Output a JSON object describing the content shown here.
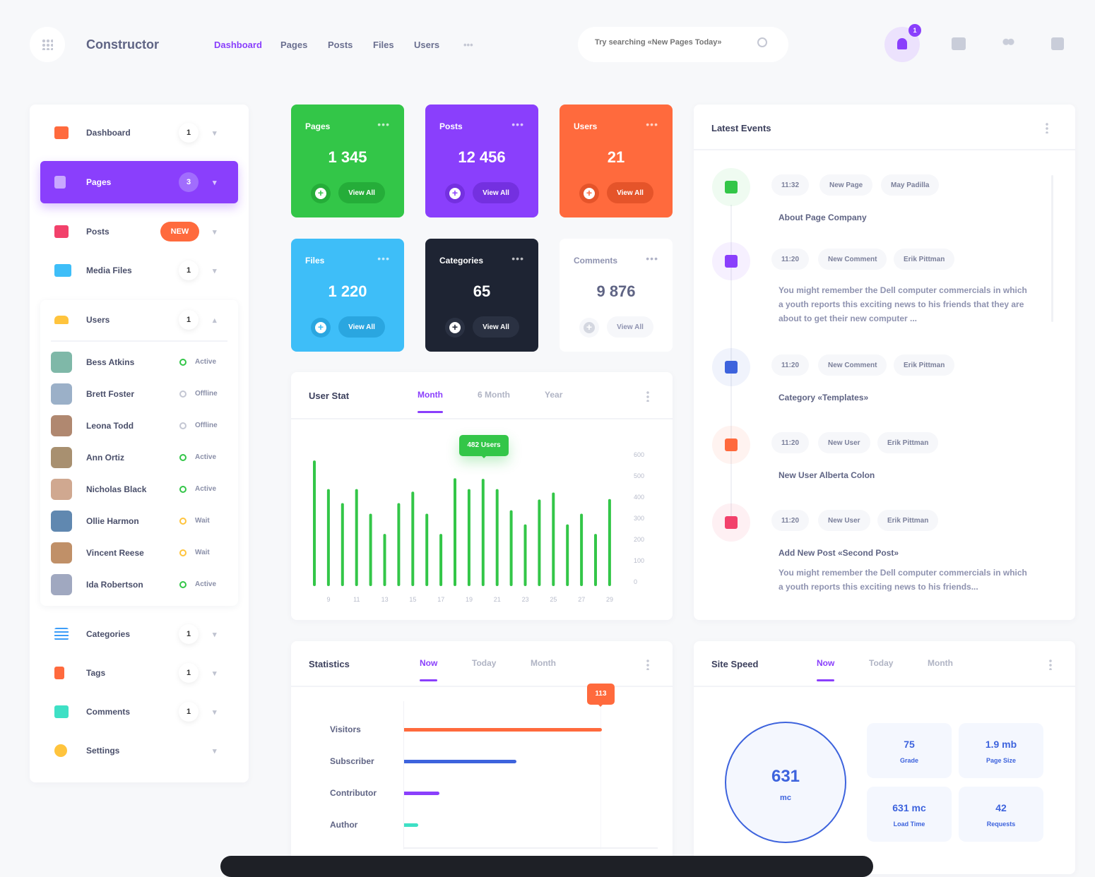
{
  "header": {
    "app_name": "Constructor",
    "nav": [
      "Dashboard",
      "Pages",
      "Posts",
      "Files",
      "Users"
    ],
    "more": "•••",
    "search_placeholder": "Try searching «New Pages Today»",
    "notification_count": "1"
  },
  "sidebar": {
    "items": [
      {
        "label": "Dashboard",
        "count": "1",
        "icon": "dashboard-icon"
      },
      {
        "label": "Pages",
        "count": "3",
        "icon": "page-icon"
      },
      {
        "label": "Posts",
        "badge": "NEW",
        "icon": "post-icon"
      },
      {
        "label": "Media Files",
        "count": "1",
        "icon": "image-icon"
      },
      {
        "label": "Users",
        "count": "1",
        "icon": "users-icon"
      },
      {
        "label": "Categories",
        "count": "1",
        "icon": "list-icon"
      },
      {
        "label": "Tags",
        "count": "1",
        "icon": "bookmark-icon"
      },
      {
        "label": "Comments",
        "count": "1",
        "icon": "comment-icon"
      },
      {
        "label": "Settings",
        "icon": "gear-icon"
      }
    ],
    "users": [
      {
        "name": "Bess Atkins",
        "status": "Active"
      },
      {
        "name": "Brett Foster",
        "status": "Offline"
      },
      {
        "name": "Leona Todd",
        "status": "Offline"
      },
      {
        "name": "Ann Ortiz",
        "status": "Active"
      },
      {
        "name": "Nicholas Black",
        "status": "Active"
      },
      {
        "name": "Ollie Harmon",
        "status": "Wait"
      },
      {
        "name": "Vincent Reese",
        "status": "Wait"
      },
      {
        "name": "Ida Robertson",
        "status": "Active"
      }
    ]
  },
  "tiles": [
    {
      "title": "Pages",
      "value": "1 345",
      "action": "View All",
      "color": "#33c648"
    },
    {
      "title": "Posts",
      "value": "12 456",
      "action": "View All",
      "color": "#8a3ffc"
    },
    {
      "title": "Users",
      "value": "21",
      "action": "View All",
      "color": "#ff6a3d"
    },
    {
      "title": "Files",
      "value": "1 220",
      "action": "View All",
      "color": "#3ebef8"
    },
    {
      "title": "Categories",
      "value": "65",
      "action": "View All",
      "color": "#1e2433"
    },
    {
      "title": "Comments",
      "value": "9 876",
      "action": "View All",
      "color": "#ffffff"
    }
  ],
  "user_stat": {
    "title": "User Stat",
    "tabs": [
      "Month",
      "6 Month",
      "Year"
    ],
    "tooltip": "482 Users"
  },
  "chart_data": {
    "type": "bar",
    "title": "User Stat",
    "x": [
      8,
      9,
      10,
      11,
      12,
      13,
      14,
      15,
      16,
      17,
      18,
      19,
      20,
      21,
      22,
      23,
      24,
      25,
      26,
      27,
      28,
      29
    ],
    "values": [
      567,
      435,
      370,
      435,
      321,
      228,
      370,
      423,
      321,
      228,
      485,
      435,
      482,
      435,
      337,
      272,
      387,
      419,
      272,
      321,
      228,
      389
    ],
    "xticks": [
      "9",
      "11",
      "13",
      "15",
      "17",
      "19",
      "21",
      "23",
      "25",
      "27",
      "29"
    ],
    "yticks": [
      "600",
      "500",
      "400",
      "300",
      "200",
      "100",
      "0"
    ],
    "ylim": [
      0,
      600
    ],
    "bar_color": "#33c648"
  },
  "events": {
    "title": "Latest Events",
    "items": [
      {
        "time": "11:32",
        "type": "New Page",
        "user": "May Padilla",
        "title": "About Page Company",
        "icon": "file-icon",
        "color": "#33c648"
      },
      {
        "time": "11:20",
        "type": "New Comment",
        "user": "Erik Pittman",
        "desc": "You might remember the Dell computer commercials in which a youth reports this exciting news to his friends that they are about to get their new computer ...",
        "icon": "comment-icon",
        "color": "#8a3ffc"
      },
      {
        "time": "11:20",
        "type": "New Comment",
        "user": "Erik Pittman",
        "title": "Category «Templates»",
        "icon": "list-icon",
        "color": "#3d63dd"
      },
      {
        "time": "11:20",
        "type": "New User",
        "user": "Erik Pittman",
        "title": "New User Alberta Colon",
        "icon": "users-icon",
        "color": "#ff6a3d"
      },
      {
        "time": "11:20",
        "type": "New User",
        "user": "Erik Pittman",
        "title": "Add New Post «Second Post»",
        "desc": "You might remember the Dell computer commercials in which a youth reports this exciting news to his friends...",
        "icon": "image-icon",
        "color": "#f2416b"
      }
    ]
  },
  "statistics": {
    "title": "Statistics",
    "tabs": [
      "Now",
      "Today",
      "Month"
    ],
    "tooltip": "113",
    "bars": [
      {
        "label": "Visitors",
        "value": 113,
        "color": "#ff6a3d"
      },
      {
        "label": "Subscriber",
        "value": 64,
        "color": "#3d63dd"
      },
      {
        "label": "Contributor",
        "value": 20,
        "color": "#8a3ffc"
      },
      {
        "label": "Author",
        "value": 8,
        "color": "#3ee0c5"
      }
    ],
    "max": 113
  },
  "site_speed": {
    "title": "Site Speed",
    "tabs": [
      "Now",
      "Today",
      "Month"
    ],
    "main_value": "631",
    "main_unit": "mc",
    "metrics": [
      {
        "value": "75",
        "label": "Grade"
      },
      {
        "value": "1.9 mb",
        "label": "Page Size"
      },
      {
        "value": "631 mc",
        "label": "Load Time"
      },
      {
        "value": "42",
        "label": "Requests"
      }
    ]
  }
}
